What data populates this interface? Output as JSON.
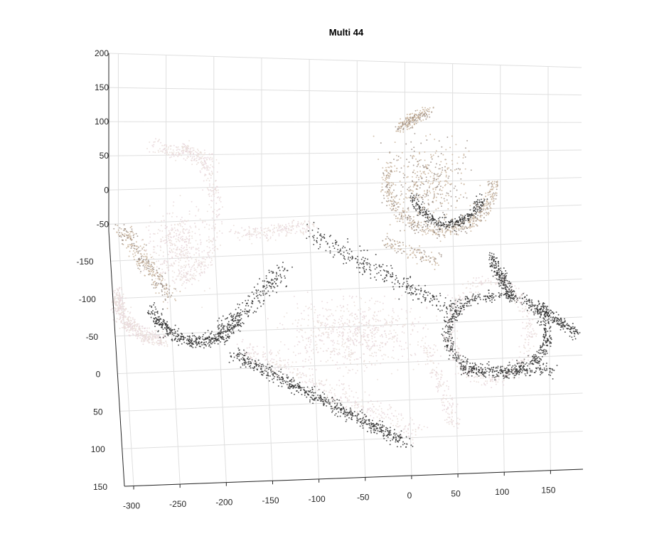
{
  "chart_data": {
    "type": "scatter",
    "projection": "3d-point-cloud",
    "title": "Multi 44",
    "x_ticks": [
      -300,
      -250,
      -200,
      -150,
      -100,
      -50,
      0,
      50,
      100,
      150
    ],
    "y_ticks": [
      150,
      100,
      50,
      0,
      -50,
      -100,
      -150
    ],
    "z_ticks": [
      200,
      150,
      100,
      50,
      0,
      -50
    ],
    "xlim": [
      -310,
      185
    ],
    "ylim": [
      -190,
      150
    ],
    "zlim": [
      -60,
      200
    ],
    "grid": true,
    "colors": {
      "background": "#ffffff",
      "grid": "#dfdfdf",
      "axis": "#262626",
      "point_dark": "#2b2b2b",
      "point_mid": "#8a7a70",
      "point_tan": "#c9b49c",
      "point_light": "#eadfd9",
      "point_pink": "#e8d6da"
    }
  }
}
